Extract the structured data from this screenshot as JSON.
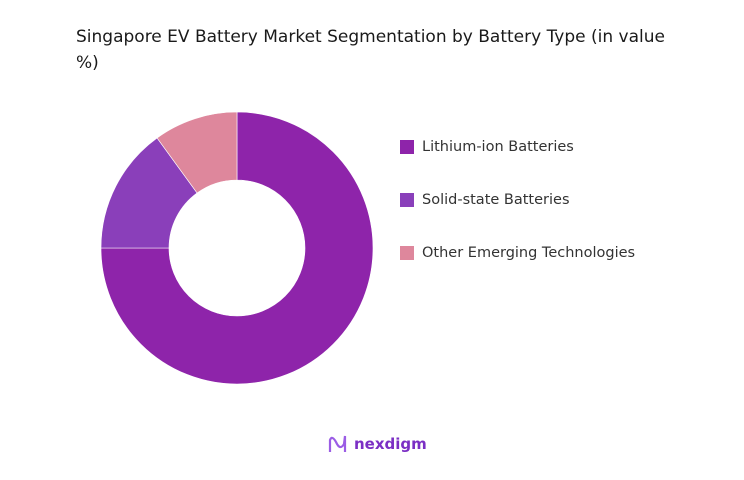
{
  "chart_data": {
    "type": "pie",
    "title": "Singapore EV Battery Market Segmentation by Battery Type (in value %)",
    "donut": true,
    "legend_position": "right",
    "categories": [
      "Lithium-ion Batteries",
      "Solid-state Batteries",
      "Other Emerging Technologies"
    ],
    "values": [
      75,
      15,
      10
    ],
    "colors": [
      "#8E24AA",
      "#8A3FBA",
      "#DE879C"
    ]
  },
  "branding": {
    "logo_text": "nexdigm",
    "logo_color": "#7B2FC4"
  }
}
